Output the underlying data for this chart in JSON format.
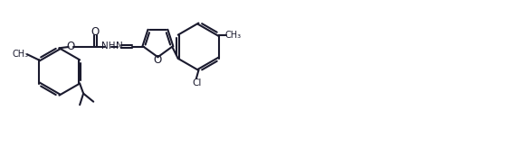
{
  "background_color": "#ffffff",
  "line_color": "#1a1a2e",
  "line_width": 1.5,
  "figsize": [
    5.79,
    1.74
  ],
  "dpi": 100,
  "xlim": [
    0,
    115
  ],
  "ylim": [
    0,
    34
  ]
}
